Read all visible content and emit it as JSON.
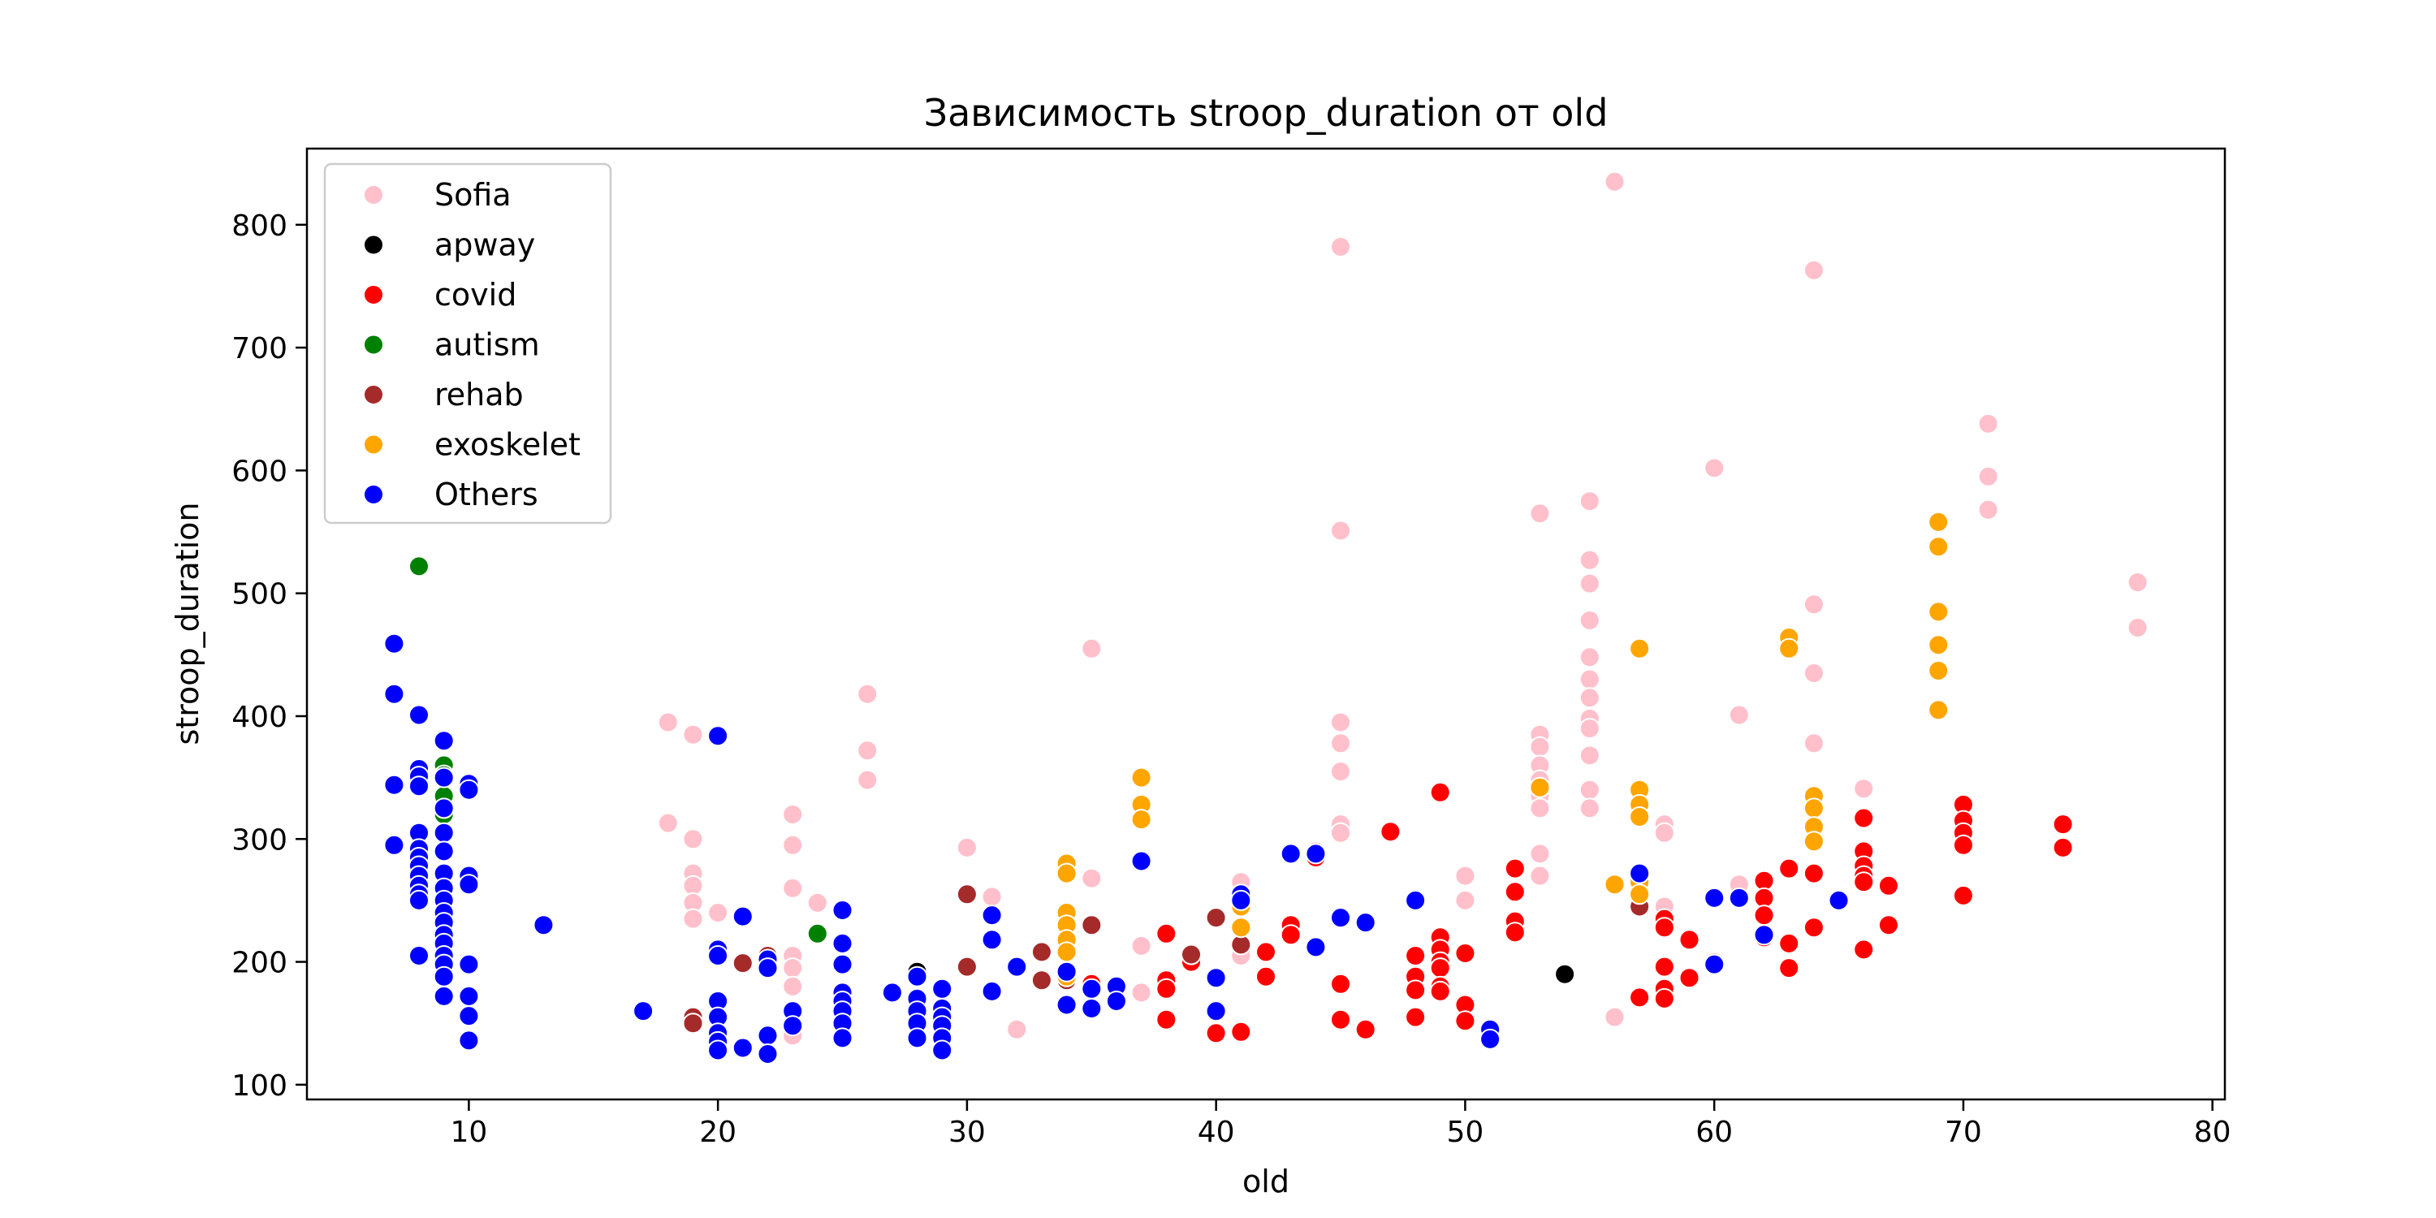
{
  "chart_data": {
    "type": "scatter",
    "title": "Зависимость stroop_duration от old",
    "xlabel": "old",
    "ylabel": "stroop_duration",
    "xlim": [
      3.5,
      80.5
    ],
    "ylim": [
      88,
      862
    ],
    "xticks": [
      10,
      20,
      30,
      40,
      50,
      60,
      70,
      80
    ],
    "yticks": [
      100,
      200,
      300,
      400,
      500,
      600,
      700,
      800
    ],
    "grid": false,
    "legend_position": "top-left",
    "series": [
      {
        "name": "Sofia",
        "color": "#ffc0cb",
        "points": [
          [
            18,
            395
          ],
          [
            18,
            313
          ],
          [
            19,
            385
          ],
          [
            19,
            300
          ],
          [
            19,
            272
          ],
          [
            19,
            262
          ],
          [
            19,
            248
          ],
          [
            19,
            235
          ],
          [
            20,
            240
          ],
          [
            23,
            320
          ],
          [
            23,
            295
          ],
          [
            23,
            260
          ],
          [
            23,
            205
          ],
          [
            23,
            195
          ],
          [
            23,
            180
          ],
          [
            23,
            140
          ],
          [
            24,
            248
          ],
          [
            26,
            418
          ],
          [
            26,
            372
          ],
          [
            26,
            348
          ],
          [
            29,
            130
          ],
          [
            30,
            293
          ],
          [
            31,
            253
          ],
          [
            32,
            145
          ],
          [
            35,
            455
          ],
          [
            35,
            268
          ],
          [
            37,
            213
          ],
          [
            37,
            175
          ],
          [
            40,
            235
          ],
          [
            41,
            265
          ],
          [
            41,
            205
          ],
          [
            44,
            290
          ],
          [
            45,
            782
          ],
          [
            45,
            551
          ],
          [
            45,
            395
          ],
          [
            45,
            378
          ],
          [
            45,
            355
          ],
          [
            45,
            312
          ],
          [
            45,
            305
          ],
          [
            50,
            270
          ],
          [
            50,
            250
          ],
          [
            53,
            565
          ],
          [
            53,
            385
          ],
          [
            53,
            375
          ],
          [
            53,
            360
          ],
          [
            53,
            348
          ],
          [
            53,
            335
          ],
          [
            53,
            325
          ],
          [
            53,
            288
          ],
          [
            53,
            270
          ],
          [
            55,
            575
          ],
          [
            55,
            527
          ],
          [
            55,
            508
          ],
          [
            55,
            478
          ],
          [
            55,
            448
          ],
          [
            55,
            430
          ],
          [
            55,
            415
          ],
          [
            55,
            398
          ],
          [
            55,
            390
          ],
          [
            55,
            368
          ],
          [
            55,
            340
          ],
          [
            55,
            325
          ],
          [
            56,
            835
          ],
          [
            56,
            155
          ],
          [
            58,
            312
          ],
          [
            58,
            305
          ],
          [
            58,
            245
          ],
          [
            60,
            602
          ],
          [
            60,
            200
          ],
          [
            61,
            401
          ],
          [
            61,
            263
          ],
          [
            64,
            763
          ],
          [
            64,
            491
          ],
          [
            64,
            435
          ],
          [
            64,
            378
          ],
          [
            66,
            341
          ],
          [
            71,
            638
          ],
          [
            71,
            595
          ],
          [
            71,
            568
          ],
          [
            77,
            509
          ],
          [
            77,
            472
          ]
        ]
      },
      {
        "name": "apway",
        "color": "#000000",
        "points": [
          [
            28,
            192
          ],
          [
            54,
            190
          ]
        ]
      },
      {
        "name": "covid",
        "color": "#ff0000",
        "points": [
          [
            35,
            182
          ],
          [
            38,
            223
          ],
          [
            38,
            185
          ],
          [
            38,
            178
          ],
          [
            38,
            153
          ],
          [
            39,
            200
          ],
          [
            40,
            142
          ],
          [
            41,
            143
          ],
          [
            42,
            208
          ],
          [
            42,
            188
          ],
          [
            43,
            230
          ],
          [
            43,
            222
          ],
          [
            44,
            285
          ],
          [
            45,
            182
          ],
          [
            45,
            153
          ],
          [
            46,
            145
          ],
          [
            47,
            306
          ],
          [
            48,
            205
          ],
          [
            48,
            188
          ],
          [
            48,
            177
          ],
          [
            48,
            155
          ],
          [
            49,
            338
          ],
          [
            49,
            220
          ],
          [
            49,
            210
          ],
          [
            49,
            200
          ],
          [
            49,
            195
          ],
          [
            49,
            180
          ],
          [
            49,
            176
          ],
          [
            50,
            207
          ],
          [
            50,
            165
          ],
          [
            50,
            152
          ],
          [
            52,
            276
          ],
          [
            52,
            257
          ],
          [
            52,
            233
          ],
          [
            52,
            224
          ],
          [
            57,
            171
          ],
          [
            58,
            235
          ],
          [
            58,
            228
          ],
          [
            58,
            196
          ],
          [
            58,
            178
          ],
          [
            58,
            170
          ],
          [
            59,
            218
          ],
          [
            59,
            187
          ],
          [
            62,
            266
          ],
          [
            62,
            252
          ],
          [
            62,
            238
          ],
          [
            62,
            220
          ],
          [
            63,
            276
          ],
          [
            63,
            215
          ],
          [
            63,
            195
          ],
          [
            64,
            272
          ],
          [
            64,
            228
          ],
          [
            66,
            317
          ],
          [
            66,
            290
          ],
          [
            66,
            278
          ],
          [
            66,
            270
          ],
          [
            66,
            265
          ],
          [
            66,
            210
          ],
          [
            67,
            262
          ],
          [
            67,
            230
          ],
          [
            70,
            328
          ],
          [
            70,
            315
          ],
          [
            70,
            305
          ],
          [
            70,
            295
          ],
          [
            70,
            254
          ],
          [
            74,
            312
          ],
          [
            74,
            293
          ]
        ]
      },
      {
        "name": "autism",
        "color": "#008000",
        "points": [
          [
            8,
            522
          ],
          [
            9,
            360
          ],
          [
            9,
            352
          ],
          [
            9,
            335
          ],
          [
            9,
            320
          ],
          [
            24,
            223
          ]
        ]
      },
      {
        "name": "rehab",
        "color": "#a52a2a",
        "points": [
          [
            19,
            155
          ],
          [
            19,
            150
          ],
          [
            21,
            199
          ],
          [
            22,
            205
          ],
          [
            22,
            200
          ],
          [
            30,
            255
          ],
          [
            30,
            196
          ],
          [
            33,
            208
          ],
          [
            33,
            185
          ],
          [
            34,
            185
          ],
          [
            35,
            230
          ],
          [
            39,
            206
          ],
          [
            40,
            236
          ],
          [
            41,
            214
          ],
          [
            57,
            245
          ]
        ]
      },
      {
        "name": "exoskelet",
        "color": "#ffa500",
        "points": [
          [
            34,
            280
          ],
          [
            34,
            272
          ],
          [
            34,
            240
          ],
          [
            34,
            230
          ],
          [
            34,
            218
          ],
          [
            34,
            208
          ],
          [
            34,
            188
          ],
          [
            37,
            350
          ],
          [
            37,
            328
          ],
          [
            37,
            316
          ],
          [
            41,
            245
          ],
          [
            41,
            228
          ],
          [
            53,
            342
          ],
          [
            56,
            263
          ],
          [
            57,
            455
          ],
          [
            57,
            340
          ],
          [
            57,
            328
          ],
          [
            57,
            318
          ],
          [
            57,
            265
          ],
          [
            57,
            255
          ],
          [
            63,
            464
          ],
          [
            63,
            455
          ],
          [
            64,
            335
          ],
          [
            64,
            325
          ],
          [
            64,
            310
          ],
          [
            64,
            298
          ],
          [
            69,
            558
          ],
          [
            69,
            538
          ],
          [
            69,
            485
          ],
          [
            69,
            458
          ],
          [
            69,
            437
          ],
          [
            69,
            405
          ]
        ]
      },
      {
        "name": "Others",
        "color": "#0000ff",
        "points": [
          [
            7,
            459
          ],
          [
            7,
            418
          ],
          [
            7,
            344
          ],
          [
            7,
            295
          ],
          [
            8,
            401
          ],
          [
            8,
            357
          ],
          [
            8,
            351
          ],
          [
            8,
            343
          ],
          [
            8,
            305
          ],
          [
            8,
            292
          ],
          [
            8,
            285
          ],
          [
            8,
            278
          ],
          [
            8,
            270
          ],
          [
            8,
            262
          ],
          [
            8,
            255
          ],
          [
            8,
            250
          ],
          [
            8,
            205
          ],
          [
            9,
            380
          ],
          [
            9,
            350
          ],
          [
            9,
            325
          ],
          [
            9,
            305
          ],
          [
            9,
            290
          ],
          [
            9,
            272
          ],
          [
            9,
            260
          ],
          [
            9,
            250
          ],
          [
            9,
            240
          ],
          [
            9,
            232
          ],
          [
            9,
            222
          ],
          [
            9,
            215
          ],
          [
            9,
            205
          ],
          [
            9,
            198
          ],
          [
            9,
            188
          ],
          [
            9,
            172
          ],
          [
            10,
            345
          ],
          [
            10,
            340
          ],
          [
            10,
            270
          ],
          [
            10,
            263
          ],
          [
            10,
            198
          ],
          [
            10,
            172
          ],
          [
            10,
            156
          ],
          [
            10,
            136
          ],
          [
            13,
            230
          ],
          [
            17,
            160
          ],
          [
            20,
            384
          ],
          [
            20,
            210
          ],
          [
            20,
            205
          ],
          [
            20,
            168
          ],
          [
            20,
            155
          ],
          [
            20,
            142
          ],
          [
            20,
            135
          ],
          [
            20,
            128
          ],
          [
            21,
            237
          ],
          [
            21,
            130
          ],
          [
            22,
            202
          ],
          [
            22,
            195
          ],
          [
            22,
            140
          ],
          [
            22,
            125
          ],
          [
            23,
            160
          ],
          [
            23,
            148
          ],
          [
            25,
            242
          ],
          [
            25,
            215
          ],
          [
            25,
            198
          ],
          [
            25,
            175
          ],
          [
            25,
            168
          ],
          [
            25,
            160
          ],
          [
            25,
            150
          ],
          [
            25,
            138
          ],
          [
            27,
            175
          ],
          [
            28,
            188
          ],
          [
            28,
            170
          ],
          [
            28,
            160
          ],
          [
            28,
            150
          ],
          [
            28,
            138
          ],
          [
            29,
            178
          ],
          [
            29,
            162
          ],
          [
            29,
            155
          ],
          [
            29,
            148
          ],
          [
            29,
            138
          ],
          [
            29,
            128
          ],
          [
            31,
            238
          ],
          [
            31,
            218
          ],
          [
            31,
            176
          ],
          [
            32,
            196
          ],
          [
            34,
            192
          ],
          [
            34,
            165
          ],
          [
            35,
            178
          ],
          [
            35,
            162
          ],
          [
            36,
            180
          ],
          [
            36,
            168
          ],
          [
            37,
            282
          ],
          [
            40,
            187
          ],
          [
            40,
            160
          ],
          [
            41,
            255
          ],
          [
            41,
            250
          ],
          [
            43,
            288
          ],
          [
            44,
            288
          ],
          [
            44,
            212
          ],
          [
            45,
            236
          ],
          [
            46,
            232
          ],
          [
            48,
            250
          ],
          [
            51,
            145
          ],
          [
            51,
            137
          ],
          [
            57,
            272
          ],
          [
            60,
            252
          ],
          [
            60,
            198
          ],
          [
            61,
            252
          ],
          [
            62,
            222
          ],
          [
            65,
            250
          ]
        ]
      }
    ]
  }
}
